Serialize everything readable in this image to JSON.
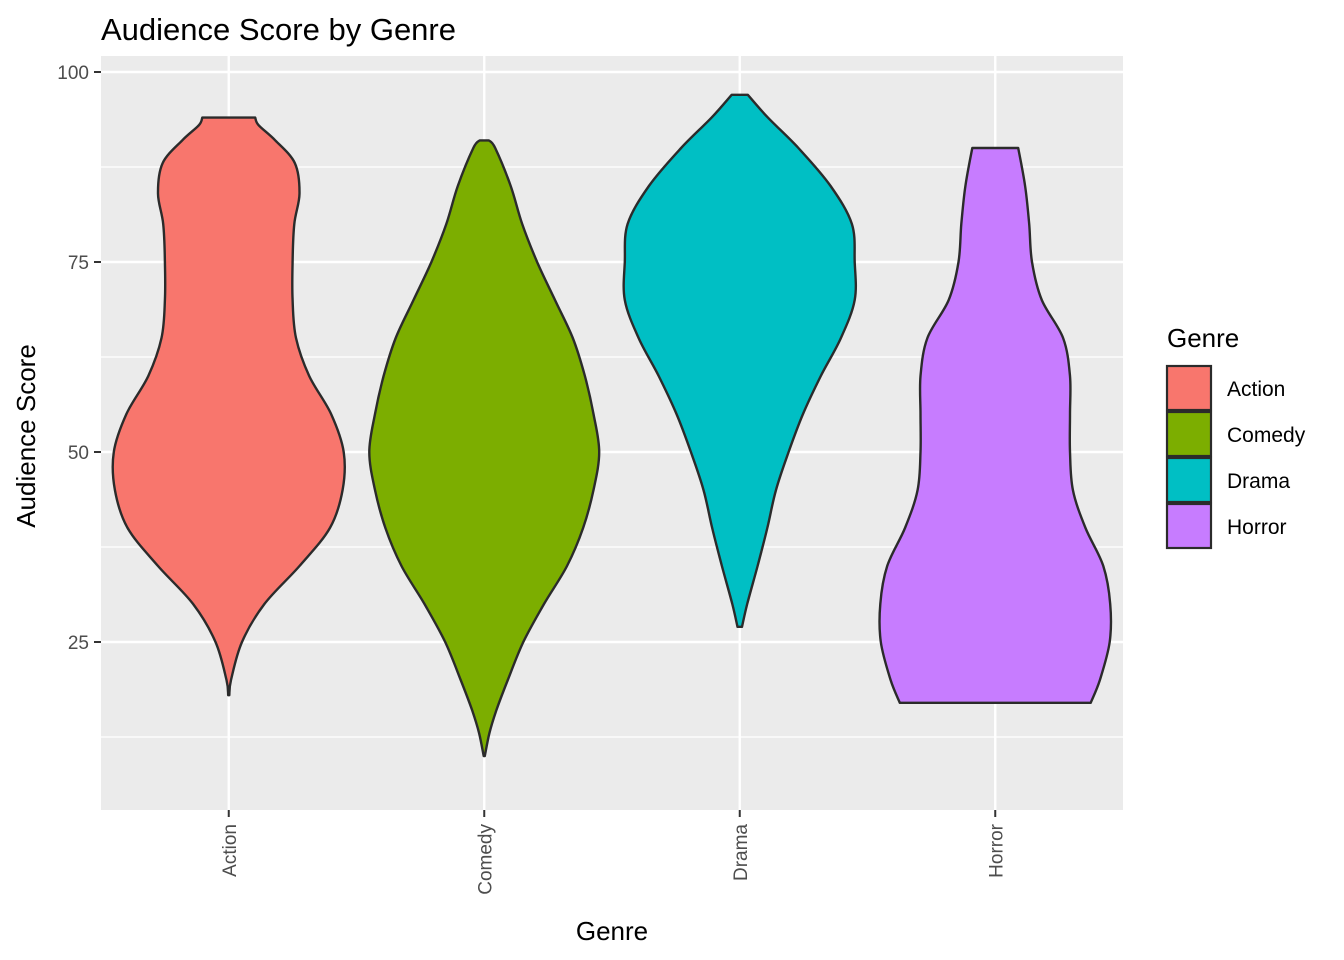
{
  "chart_data": {
    "type": "violin",
    "title": "Audience Score by Genre",
    "xlabel": "Genre",
    "ylabel": "Audience Score",
    "ylim": [
      5.5,
      100
    ],
    "yticks": [
      25,
      50,
      75,
      100
    ],
    "grid": true,
    "legend": {
      "title": "Genre",
      "position": "right"
    },
    "categories": [
      "Action",
      "Comedy",
      "Drama",
      "Horror"
    ],
    "series": [
      {
        "name": "Action",
        "color": "#F8766D",
        "min": 18,
        "max": 94,
        "density": [
          [
            18,
            0.001
          ],
          [
            20,
            0.004
          ],
          [
            25,
            0.023
          ],
          [
            30,
            0.062
          ],
          [
            35,
            0.123
          ],
          [
            40,
            0.176
          ],
          [
            45,
            0.198
          ],
          [
            50,
            0.2
          ],
          [
            55,
            0.178
          ],
          [
            60,
            0.14
          ],
          [
            65,
            0.117
          ],
          [
            70,
            0.111
          ],
          [
            75,
            0.111
          ],
          [
            80,
            0.114
          ],
          [
            84,
            0.123
          ],
          [
            88,
            0.115
          ],
          [
            91,
            0.081
          ],
          [
            93,
            0.052
          ],
          [
            94,
            0.046
          ]
        ]
      },
      {
        "name": "Comedy",
        "color": "#7CAE00",
        "min": 10,
        "max": 91,
        "density": [
          [
            10,
            0.001
          ],
          [
            13,
            0.009
          ],
          [
            16,
            0.021
          ],
          [
            20,
            0.041
          ],
          [
            25,
            0.068
          ],
          [
            30,
            0.104
          ],
          [
            35,
            0.144
          ],
          [
            40,
            0.172
          ],
          [
            45,
            0.19
          ],
          [
            50,
            0.2
          ],
          [
            55,
            0.19
          ],
          [
            60,
            0.175
          ],
          [
            65,
            0.154
          ],
          [
            70,
            0.123
          ],
          [
            75,
            0.092
          ],
          [
            80,
            0.066
          ],
          [
            85,
            0.046
          ],
          [
            90,
            0.019
          ],
          [
            91,
            0.008
          ]
        ]
      },
      {
        "name": "Drama",
        "color": "#00BFC4",
        "min": 27,
        "max": 97,
        "density": [
          [
            27,
            0.004
          ],
          [
            30,
            0.013
          ],
          [
            35,
            0.031
          ],
          [
            40,
            0.048
          ],
          [
            45,
            0.063
          ],
          [
            50,
            0.085
          ],
          [
            55,
            0.11
          ],
          [
            60,
            0.141
          ],
          [
            65,
            0.176
          ],
          [
            70,
            0.2
          ],
          [
            75,
            0.2
          ],
          [
            80,
            0.195
          ],
          [
            85,
            0.158
          ],
          [
            90,
            0.102
          ],
          [
            94,
            0.049
          ],
          [
            97,
            0.014
          ]
        ]
      },
      {
        "name": "Horror",
        "color": "#C77CFF",
        "min": 17,
        "max": 90,
        "density": [
          [
            17,
            0.166
          ],
          [
            20,
            0.182
          ],
          [
            25,
            0.199
          ],
          [
            30,
            0.2
          ],
          [
            35,
            0.188
          ],
          [
            40,
            0.157
          ],
          [
            45,
            0.135
          ],
          [
            50,
            0.13
          ],
          [
            55,
            0.13
          ],
          [
            60,
            0.13
          ],
          [
            65,
            0.118
          ],
          [
            70,
            0.081
          ],
          [
            75,
            0.064
          ],
          [
            80,
            0.059
          ],
          [
            85,
            0.052
          ],
          [
            90,
            0.04
          ]
        ]
      }
    ]
  }
}
